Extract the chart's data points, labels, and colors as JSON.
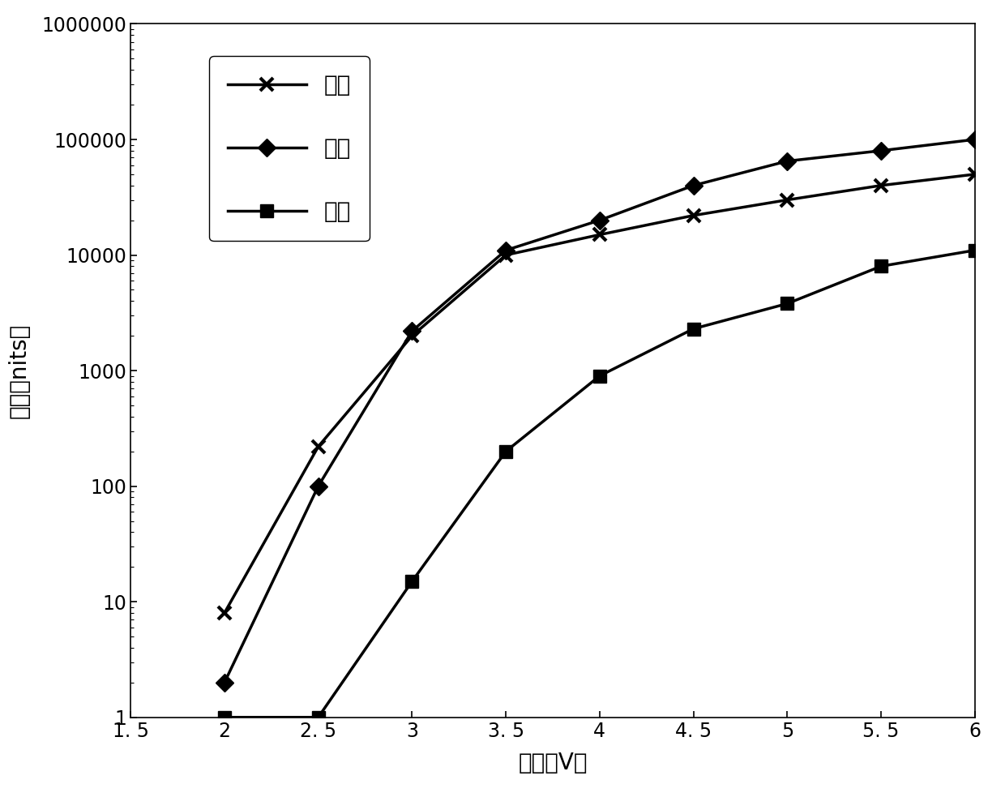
{
  "red_x": [
    2.0,
    2.5,
    3.0,
    3.5,
    4.0,
    4.5,
    5.0,
    5.5,
    6.0
  ],
  "red_y": [
    8,
    220,
    2000,
    10000,
    15000,
    22000,
    30000,
    40000,
    50000
  ],
  "green_x": [
    2.0,
    2.5,
    3.0,
    3.5,
    4.0,
    4.5,
    5.0,
    5.5,
    6.0
  ],
  "green_y": [
    2,
    100,
    2200,
    11000,
    20000,
    40000,
    65000,
    80000,
    100000
  ],
  "blue_x": [
    2.0,
    2.5,
    3.0,
    3.5,
    4.0,
    4.5,
    5.0,
    5.5,
    6.0
  ],
  "blue_y": [
    1,
    1,
    15,
    200,
    900,
    2300,
    3800,
    8000,
    11000
  ],
  "xlabel": "电压（V）",
  "ylabel": "亮度（nits）",
  "legend_red": "红色",
  "legend_green": "绿色",
  "legend_blue": "蓝色",
  "line_color": "#000000",
  "bg_color": "#ffffff",
  "xlim": [
    1.5,
    6.0
  ],
  "ylim_min": 1,
  "ylim_max": 1000000,
  "xticks": [
    1.5,
    2.0,
    2.5,
    3.0,
    3.5,
    4.0,
    4.5,
    5.0,
    5.5,
    6.0
  ],
  "xtick_labels": [
    "1. 5",
    "2",
    "2. 5",
    "3",
    "3. 5",
    "4",
    "4. 5",
    "5",
    "5. 5",
    "6"
  ],
  "yticks": [
    1,
    10,
    100,
    1000,
    10000,
    100000,
    1000000
  ],
  "ytick_labels": [
    "1",
    "10",
    "100",
    "1000",
    "10000",
    "100000",
    "1000000"
  ],
  "axis_fontsize": 20,
  "tick_fontsize": 17,
  "legend_fontsize": 20,
  "linewidth": 2.5,
  "marker_size": 11
}
